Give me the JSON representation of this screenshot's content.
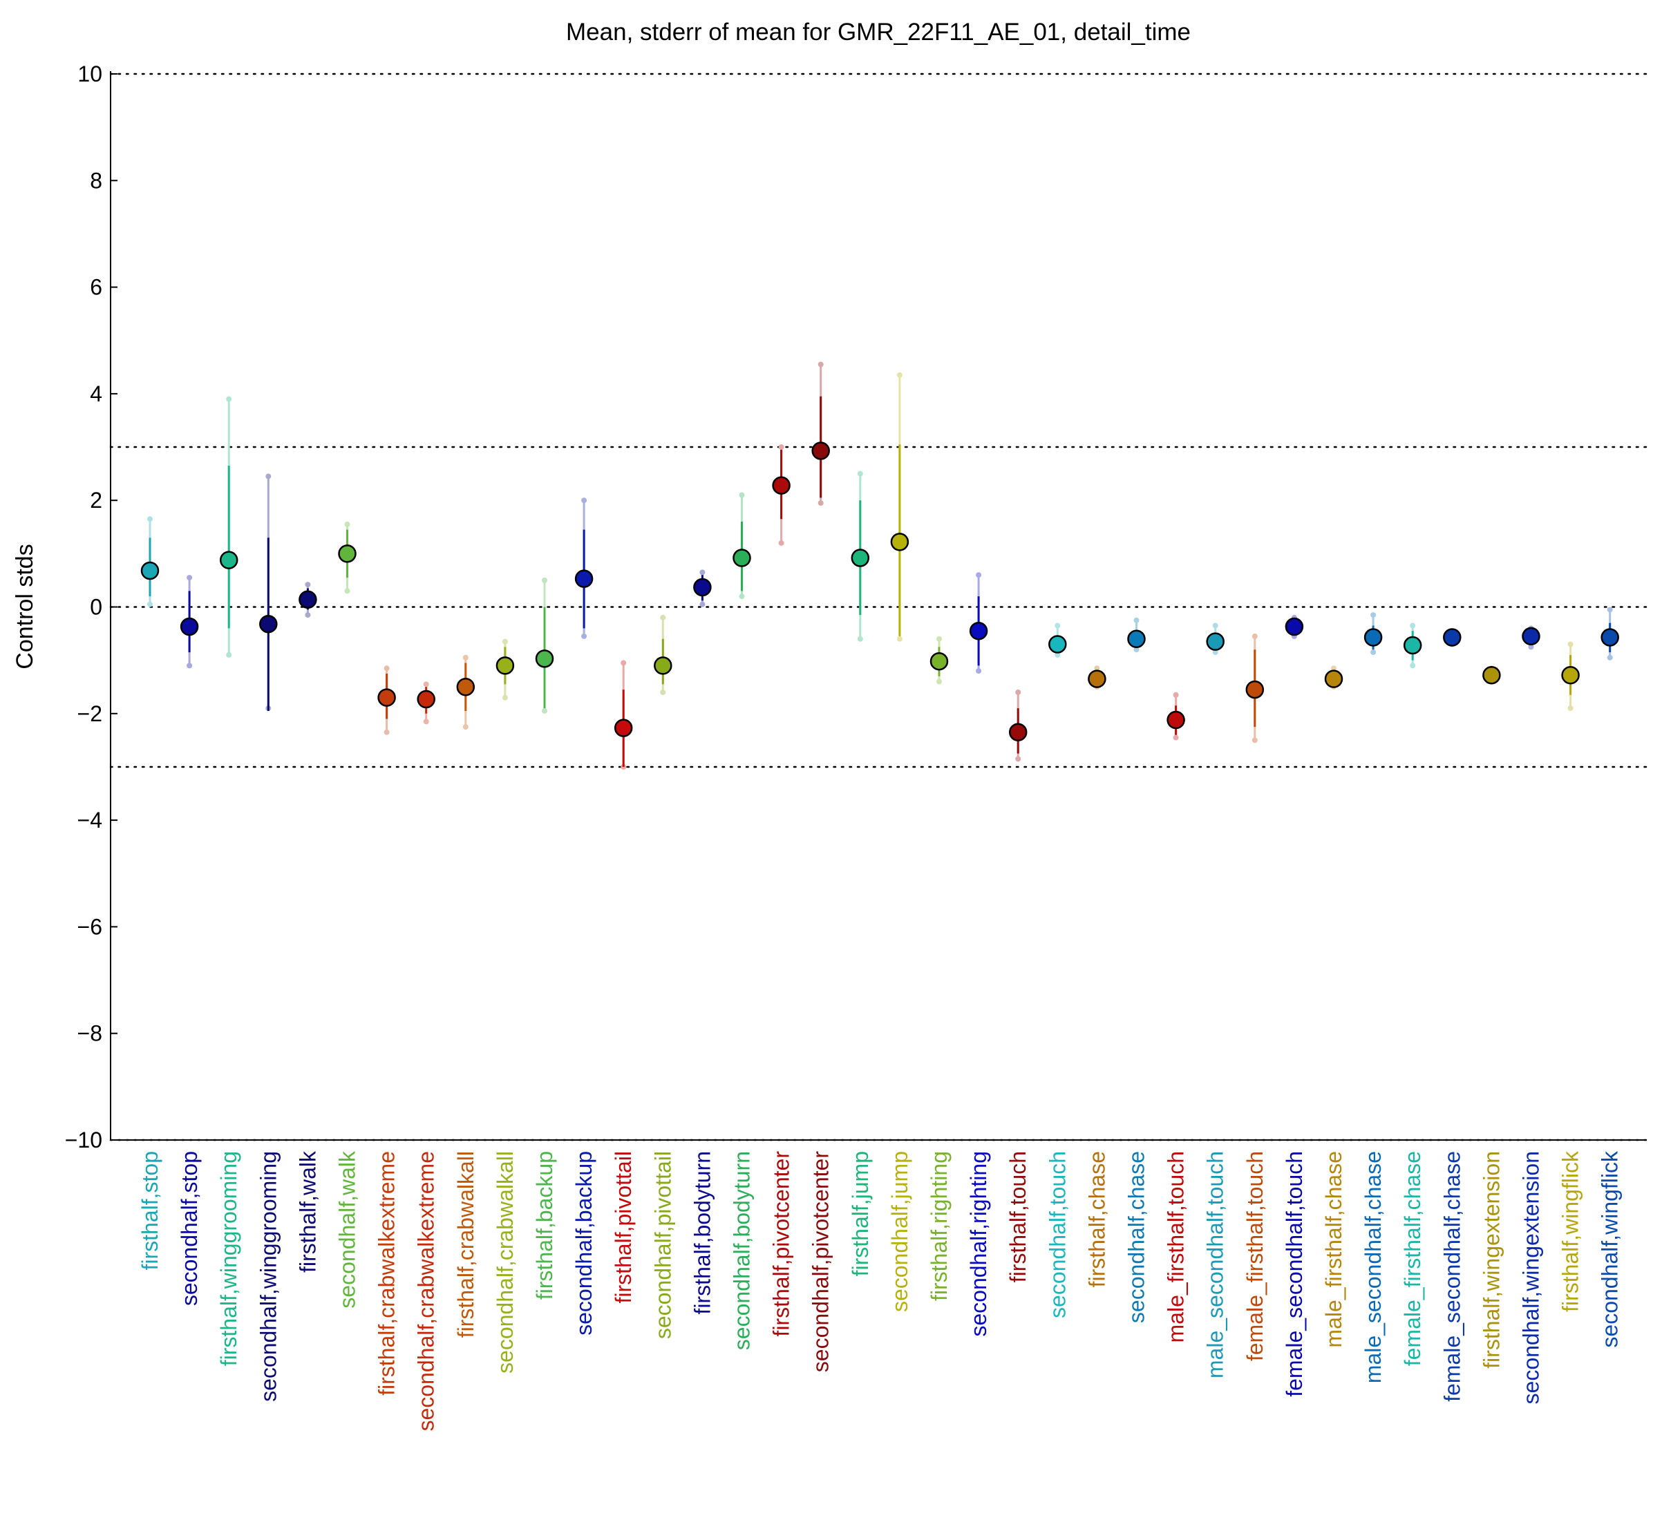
{
  "chart_data": {
    "type": "scatter",
    "title": "Mean, stderr of mean for GMR_22F11_AE_01, detail_time",
    "ylabel": "Control stds",
    "xlabel": "",
    "ylim": [
      -10,
      10
    ],
    "yticks": [
      -10,
      -8,
      -6,
      -4,
      -2,
      0,
      2,
      4,
      6,
      8,
      10
    ],
    "reference_lines": [
      -10,
      -3,
      0,
      3,
      10
    ],
    "grid": false,
    "points": [
      {
        "label": "firsthalf,stop",
        "color": "#1aa6b5",
        "mean": 0.68,
        "stderr_low": 0.2,
        "stderr_high": 1.3,
        "range_low": 0.05,
        "range_high": 1.65
      },
      {
        "label": "secondhalf,stop",
        "color": "#0a0a9e",
        "mean": -0.37,
        "stderr_low": -0.85,
        "stderr_high": 0.3,
        "range_low": -1.1,
        "range_high": 0.55
      },
      {
        "label": "firsthalf,winggrooming",
        "color": "#1db68a",
        "mean": 0.88,
        "stderr_low": -0.4,
        "stderr_high": 2.65,
        "range_low": -0.9,
        "range_high": 3.9
      },
      {
        "label": "secondhalf,winggrooming",
        "color": "#0a0a72",
        "mean": -0.32,
        "stderr_low": -1.95,
        "stderr_high": 1.3,
        "range_low": -1.9,
        "range_high": 2.45
      },
      {
        "label": "firsthalf,walk",
        "color": "#0a0a72",
        "mean": 0.14,
        "stderr_low": -0.05,
        "stderr_high": 0.35,
        "range_low": -0.15,
        "range_high": 0.42
      },
      {
        "label": "secondhalf,walk",
        "color": "#60b63a",
        "mean": 1.0,
        "stderr_low": 0.55,
        "stderr_high": 1.45,
        "range_low": 0.3,
        "range_high": 1.55
      },
      {
        "label": "firsthalf,crabwalkextreme",
        "color": "#c43c0a",
        "mean": -1.7,
        "stderr_low": -2.1,
        "stderr_high": -1.25,
        "range_low": -2.35,
        "range_high": -1.15
      },
      {
        "label": "secondhalf,crabwalkextreme",
        "color": "#c42a0a",
        "mean": -1.73,
        "stderr_low": -2.0,
        "stderr_high": -1.5,
        "range_low": -2.15,
        "range_high": -1.45
      },
      {
        "label": "firsthalf,crabwalkall",
        "color": "#c05a0a",
        "mean": -1.5,
        "stderr_low": -1.95,
        "stderr_high": -1.05,
        "range_low": -2.25,
        "range_high": -0.95
      },
      {
        "label": "secondhalf,crabwalkall",
        "color": "#98b01a",
        "mean": -1.1,
        "stderr_low": -1.45,
        "stderr_high": -0.75,
        "range_low": -1.7,
        "range_high": -0.65
      },
      {
        "label": "firsthalf,backup",
        "color": "#4cb64c",
        "mean": -0.97,
        "stderr_low": -1.9,
        "stderr_high": 0.0,
        "range_low": -1.95,
        "range_high": 0.5
      },
      {
        "label": "secondhalf,backup",
        "color": "#0a1aaa",
        "mean": 0.53,
        "stderr_low": -0.4,
        "stderr_high": 1.45,
        "range_low": -0.55,
        "range_high": 2.0
      },
      {
        "label": "firsthalf,pivottail",
        "color": "#c40a0a",
        "mean": -2.27,
        "stderr_low": -3.0,
        "stderr_high": -1.55,
        "range_low": -3.0,
        "range_high": -1.05
      },
      {
        "label": "secondhalf,pivottail",
        "color": "#88aa1a",
        "mean": -1.1,
        "stderr_low": -1.45,
        "stderr_high": -0.6,
        "range_low": -1.6,
        "range_high": -0.2
      },
      {
        "label": "firsthalf,bodyturn",
        "color": "#0a0a8e",
        "mean": 0.37,
        "stderr_low": 0.12,
        "stderr_high": 0.6,
        "range_low": 0.05,
        "range_high": 0.65
      },
      {
        "label": "secondhalf,bodyturn",
        "color": "#2aae58",
        "mean": 0.92,
        "stderr_low": 0.3,
        "stderr_high": 1.6,
        "range_low": 0.2,
        "range_high": 2.1
      },
      {
        "label": "firsthalf,pivotcenter",
        "color": "#aa0a0a",
        "mean": 2.28,
        "stderr_low": 1.65,
        "stderr_high": 2.95,
        "range_low": 1.2,
        "range_high": 3.0
      },
      {
        "label": "secondhalf,pivotcenter",
        "color": "#880a0a",
        "mean": 2.93,
        "stderr_low": 2.05,
        "stderr_high": 3.95,
        "range_low": 1.95,
        "range_high": 4.55
      },
      {
        "label": "firsthalf,jump",
        "color": "#1db67a",
        "mean": 0.92,
        "stderr_low": -0.15,
        "stderr_high": 2.0,
        "range_low": -0.6,
        "range_high": 2.5
      },
      {
        "label": "secondhalf,jump",
        "color": "#b6b20a",
        "mean": 1.22,
        "stderr_low": -0.55,
        "stderr_high": 3.05,
        "range_low": -0.6,
        "range_high": 4.35
      },
      {
        "label": "firsthalf,righting",
        "color": "#78b22a",
        "mean": -1.02,
        "stderr_low": -1.3,
        "stderr_high": -0.75,
        "range_low": -1.4,
        "range_high": -0.6
      },
      {
        "label": "secondhalf,righting",
        "color": "#0a0abe",
        "mean": -0.45,
        "stderr_low": -1.1,
        "stderr_high": 0.2,
        "range_low": -1.2,
        "range_high": 0.6
      },
      {
        "label": "firsthalf,touch",
        "color": "#960a0a",
        "mean": -2.35,
        "stderr_low": -2.75,
        "stderr_high": -1.9,
        "range_low": -2.85,
        "range_high": -1.6
      },
      {
        "label": "secondhalf,touch",
        "color": "#1ab6be",
        "mean": -0.7,
        "stderr_low": -0.85,
        "stderr_high": -0.55,
        "range_low": -0.9,
        "range_high": -0.35
      },
      {
        "label": "firsthalf,chase",
        "color": "#b6700a",
        "mean": -1.35,
        "stderr_low": -1.45,
        "stderr_high": -1.25,
        "range_low": -1.5,
        "range_high": -1.15
      },
      {
        "label": "secondhalf,chase",
        "color": "#0a7ab6",
        "mean": -0.6,
        "stderr_low": -0.75,
        "stderr_high": -0.45,
        "range_low": -0.8,
        "range_high": -0.25
      },
      {
        "label": "male_firsthalf,touch",
        "color": "#be0a0a",
        "mean": -2.12,
        "stderr_low": -2.4,
        "stderr_high": -1.85,
        "range_low": -2.45,
        "range_high": -1.65
      },
      {
        "label": "male_secondhalf,touch",
        "color": "#1a9ab6",
        "mean": -0.65,
        "stderr_low": -0.8,
        "stderr_high": -0.5,
        "range_low": -0.85,
        "range_high": -0.35
      },
      {
        "label": "female_firsthalf,touch",
        "color": "#be4a0a",
        "mean": -1.55,
        "stderr_low": -2.25,
        "stderr_high": -0.8,
        "range_low": -2.5,
        "range_high": -0.55
      },
      {
        "label": "female_secondhalf,touch",
        "color": "#0a0aaa",
        "mean": -0.37,
        "stderr_low": -0.5,
        "stderr_high": -0.25,
        "range_low": -0.55,
        "range_high": -0.2
      },
      {
        "label": "male_firsthalf,chase",
        "color": "#b6860a",
        "mean": -1.35,
        "stderr_low": -1.45,
        "stderr_high": -1.25,
        "range_low": -1.5,
        "range_high": -1.15
      },
      {
        "label": "male_secondhalf,chase",
        "color": "#0a6ab6",
        "mean": -0.57,
        "stderr_low": -0.8,
        "stderr_high": -0.35,
        "range_low": -0.85,
        "range_high": -0.15
      },
      {
        "label": "female_firsthalf,chase",
        "color": "#1ab6a6",
        "mean": -0.72,
        "stderr_low": -1.0,
        "stderr_high": -0.45,
        "range_low": -1.1,
        "range_high": -0.35
      },
      {
        "label": "female_secondhalf,chase",
        "color": "#0a3aaa",
        "mean": -0.57,
        "stderr_low": -0.65,
        "stderr_high": -0.5,
        "range_low": -0.7,
        "range_high": -0.45
      },
      {
        "label": "firsthalf,wingextension",
        "color": "#aa920a",
        "mean": -1.28,
        "stderr_low": -1.35,
        "stderr_high": -1.2,
        "range_low": -1.4,
        "range_high": -1.15
      },
      {
        "label": "secondhalf,wingextension",
        "color": "#0a2aaa",
        "mean": -0.55,
        "stderr_low": -0.65,
        "stderr_high": -0.45,
        "range_low": -0.75,
        "range_high": -0.4
      },
      {
        "label": "firsthalf,wingflick",
        "color": "#b6a60a",
        "mean": -1.28,
        "stderr_low": -1.65,
        "stderr_high": -0.9,
        "range_low": -1.9,
        "range_high": -0.7
      },
      {
        "label": "secondhalf,wingflick",
        "color": "#0a4aaa",
        "mean": -0.57,
        "stderr_low": -0.85,
        "stderr_high": -0.3,
        "range_low": -0.95,
        "range_high": -0.05
      }
    ]
  }
}
